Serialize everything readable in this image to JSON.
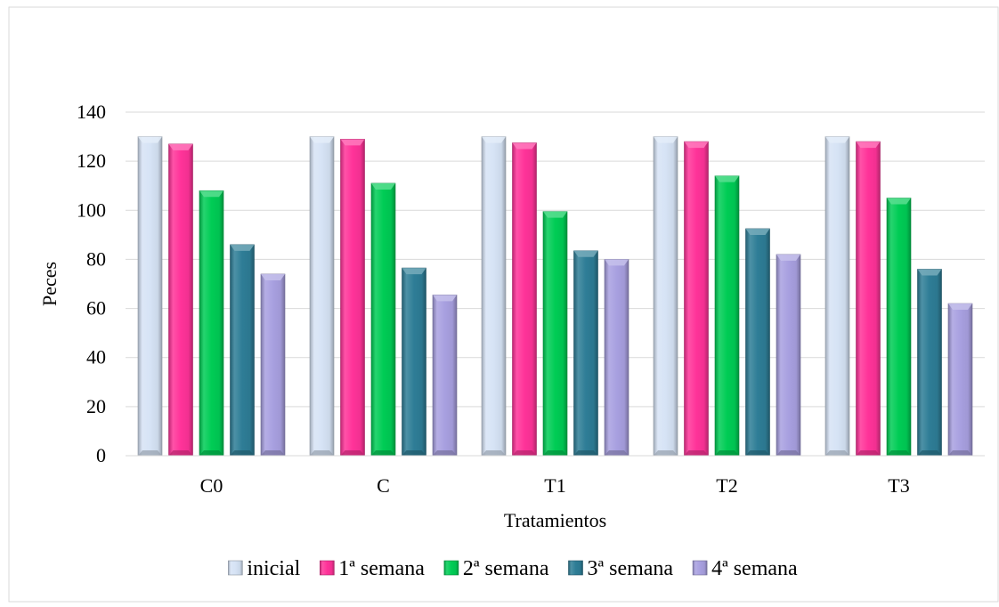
{
  "chart_data": {
    "type": "bar",
    "title": "",
    "xlabel": "Tratamientos",
    "ylabel": "Peces",
    "ylim": [
      0,
      140
    ],
    "yticks": [
      0,
      20,
      40,
      60,
      80,
      100,
      120,
      140
    ],
    "grid": true,
    "legend": "bottom",
    "categories": [
      "C0",
      "C",
      "T1",
      "T2",
      "T3"
    ],
    "series": [
      {
        "name": "inicial",
        "color": "#d6e3f5",
        "values": [
          130,
          130,
          130,
          130,
          130
        ]
      },
      {
        "name": "1ª semana",
        "color": "#ff3399",
        "values": [
          127,
          129,
          127.5,
          128,
          128
        ]
      },
      {
        "name": "2ª semana",
        "color": "#00cc55",
        "values": [
          108,
          111,
          99.5,
          114,
          105
        ]
      },
      {
        "name": "3ª semana",
        "color": "#2e7d96",
        "values": [
          86,
          76.5,
          83.5,
          92.5,
          76
        ]
      },
      {
        "name": "4ª semana",
        "color": "#a8a0e0",
        "values": [
          74,
          65.5,
          80,
          82,
          62
        ]
      }
    ]
  }
}
